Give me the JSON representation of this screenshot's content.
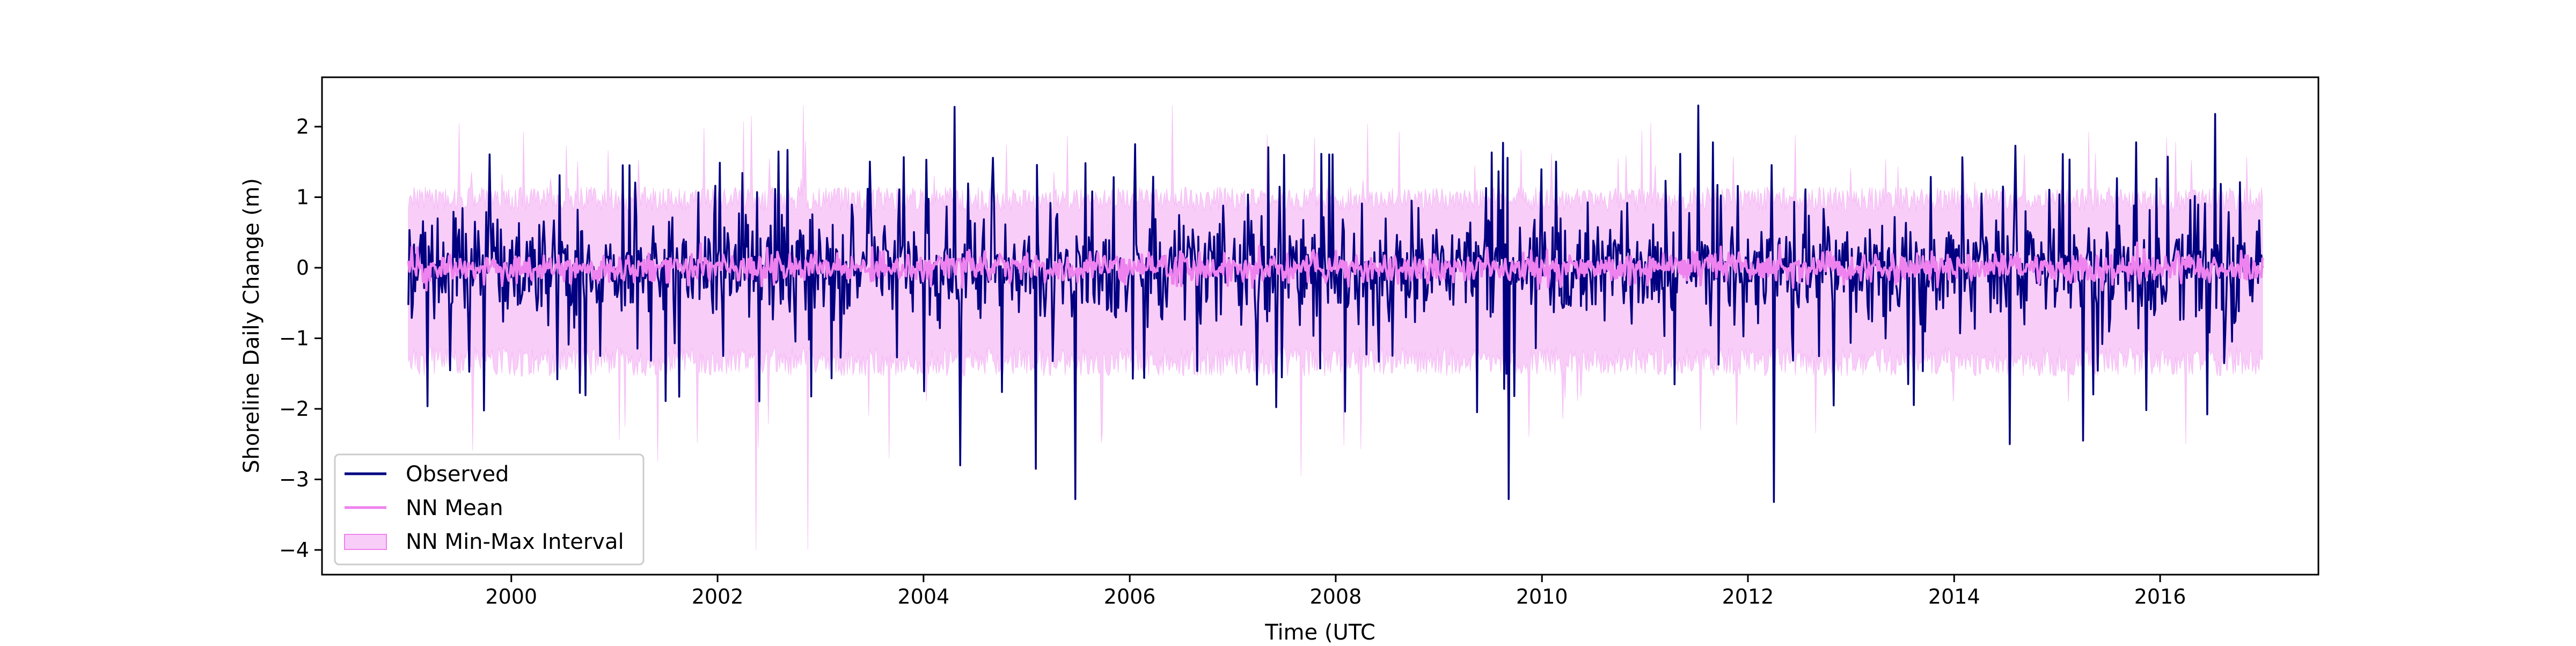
{
  "chart_data": {
    "type": "line",
    "title": "",
    "xlabel": "Time (UTC",
    "ylabel": "Shoreline Daily Change (m)",
    "xlim": [
      "1998-03-01",
      "2017-07-15"
    ],
    "ylim": [
      -4.35,
      2.7
    ],
    "x_ticks": [
      {
        "value": "2000-01-01",
        "label": "2000"
      },
      {
        "value": "2002-01-01",
        "label": "2002"
      },
      {
        "value": "2004-01-01",
        "label": "2004"
      },
      {
        "value": "2006-01-01",
        "label": "2006"
      },
      {
        "value": "2008-01-01",
        "label": "2008"
      },
      {
        "value": "2010-01-01",
        "label": "2010"
      },
      {
        "value": "2012-01-01",
        "label": "2012"
      },
      {
        "value": "2014-01-01",
        "label": "2014"
      },
      {
        "value": "2016-01-01",
        "label": "2016"
      }
    ],
    "y_ticks": [
      {
        "value": 2,
        "label": "2"
      },
      {
        "value": 1,
        "label": "1"
      },
      {
        "value": 0,
        "label": "0"
      },
      {
        "value": -1,
        "label": "−1"
      },
      {
        "value": -2,
        "label": "−2"
      },
      {
        "value": -3,
        "label": "−3"
      },
      {
        "value": -4,
        "label": "−4"
      }
    ],
    "grid": false,
    "legend_position": "lower-left",
    "x_range_data": [
      "1999-01-01",
      "2016-12-31"
    ],
    "series": [
      {
        "name": "Observed",
        "kind": "line",
        "color": "#000080",
        "typical_range": [
          -1.0,
          1.0
        ],
        "notable_points": [
          {
            "x": "2004-04-20",
            "y": 2.28
          },
          {
            "x": "2011-07-10",
            "y": 2.3
          },
          {
            "x": "2015-04-01",
            "y": 2.32
          },
          {
            "x": "2016-07-15",
            "y": 2.18
          },
          {
            "x": "2004-05-10",
            "y": -2.8
          },
          {
            "x": "2005-02-01",
            "y": -2.85
          },
          {
            "x": "2005-06-20",
            "y": -3.28
          },
          {
            "x": "2009-09-05",
            "y": -3.28
          },
          {
            "x": "2012-04-01",
            "y": -3.32
          },
          {
            "x": "2015-04-01",
            "y": -2.45
          },
          {
            "x": "2014-07-15",
            "y": -2.5
          }
        ]
      },
      {
        "name": "NN Mean",
        "kind": "line",
        "color": "#ee82ee",
        "typical_range": [
          -0.25,
          0.25
        ]
      },
      {
        "name": "NN Min-Max Interval",
        "kind": "band",
        "color": "#ee82ee",
        "opacity": 0.4,
        "typical_range": [
          -1.4,
          1.0
        ],
        "notable_points": [
          {
            "x": "1999-07-01",
            "y": 2.05
          },
          {
            "x": "2002-05-01",
            "y": 2.15
          },
          {
            "x": "2002-11-01",
            "y": 2.3
          },
          {
            "x": "2006-06-01",
            "y": 2.3
          },
          {
            "x": "2002-05-15",
            "y": -4.0
          },
          {
            "x": "2002-11-15",
            "y": -4.0
          },
          {
            "x": "2001-06-01",
            "y": -2.75
          },
          {
            "x": "2003-09-01",
            "y": -2.7
          },
          {
            "x": "2007-09-01",
            "y": -2.95
          },
          {
            "x": "2016-04-01",
            "y": -2.5
          }
        ]
      }
    ]
  }
}
